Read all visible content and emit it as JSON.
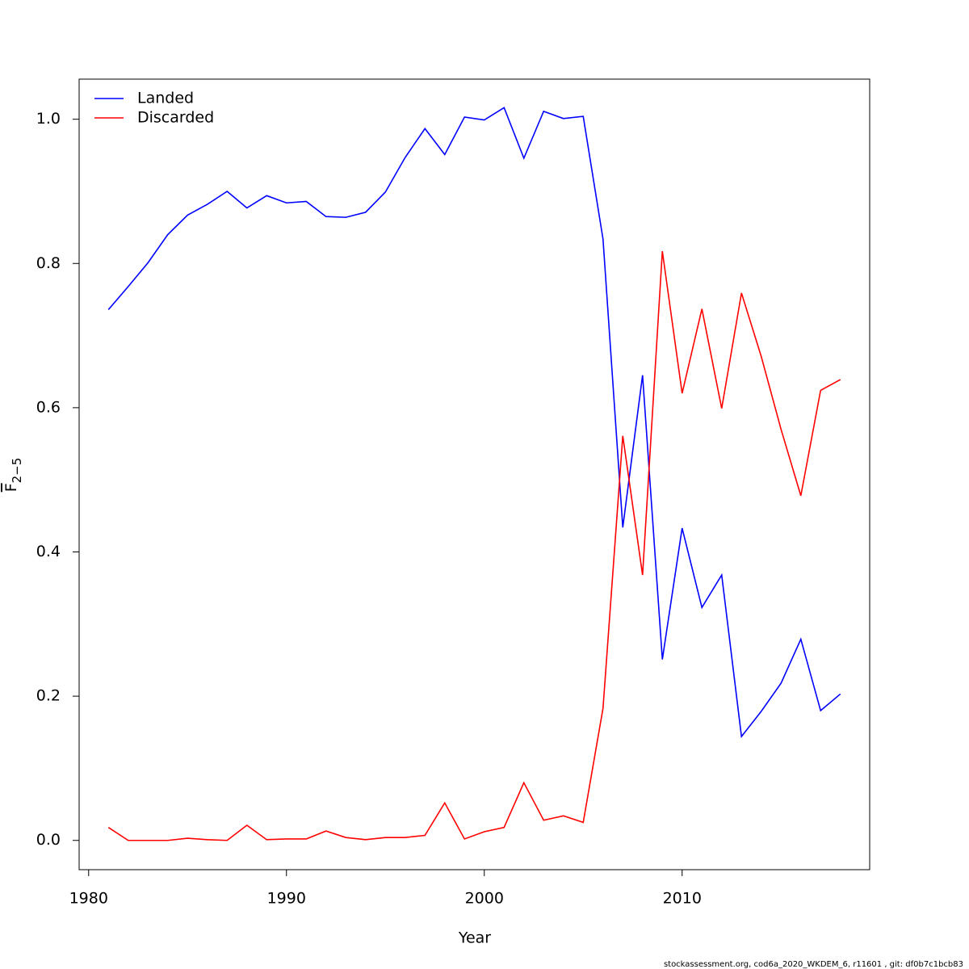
{
  "chart_data": {
    "type": "line",
    "x_label": "Year",
    "y_label": "F",
    "y_label_sub": "2−5",
    "footer": "stockassessment.org, cod6a_2020_WKDEM_6, r11601 , git: df0b7c1bcb83",
    "x": [
      1981,
      1982,
      1983,
      1984,
      1985,
      1986,
      1987,
      1988,
      1989,
      1990,
      1991,
      1992,
      1993,
      1994,
      1995,
      1996,
      1997,
      1998,
      1999,
      2000,
      2001,
      2002,
      2003,
      2004,
      2005,
      2006,
      2007,
      2008,
      2009,
      2010,
      2011,
      2012,
      2013,
      2014,
      2015,
      2016,
      2017,
      2018
    ],
    "series": [
      {
        "name": "Landed",
        "color": "#0000ff",
        "values": [
          0.736,
          0.768,
          0.801,
          0.84,
          0.867,
          0.882,
          0.9,
          0.877,
          0.894,
          0.884,
          0.886,
          0.865,
          0.864,
          0.871,
          0.899,
          0.947,
          0.987,
          0.951,
          1.003,
          0.999,
          1.016,
          0.946,
          1.011,
          1.001,
          1.004,
          0.834,
          0.434,
          0.645,
          0.251,
          0.433,
          0.323,
          0.368,
          0.144,
          0.179,
          0.218,
          0.279,
          0.18,
          0.203
        ]
      },
      {
        "name": "Discarded",
        "color": "#ff0000",
        "values": [
          0.018,
          0.0,
          0.0,
          0.0,
          0.003,
          0.001,
          0.0,
          0.021,
          0.001,
          0.002,
          0.002,
          0.013,
          0.004,
          0.001,
          0.004,
          0.004,
          0.007,
          0.052,
          0.002,
          0.012,
          0.018,
          0.08,
          0.028,
          0.034,
          0.025,
          0.183,
          0.561,
          0.368,
          0.817,
          0.62,
          0.737,
          0.599,
          0.759,
          0.671,
          0.57,
          0.478,
          0.624,
          0.639
        ]
      }
    ],
    "xlim": [
      1979.52,
      2019.48
    ],
    "ylim": [
      -0.0406,
      1.0556
    ],
    "xticks": [
      1980,
      1990,
      2000,
      2010
    ],
    "yticks": [
      {
        "value": 0,
        "label": "0.0"
      },
      0.2,
      0.4,
      0.6,
      0.8,
      {
        "value": 1,
        "label": "1.0"
      }
    ],
    "legend": "top-left"
  }
}
